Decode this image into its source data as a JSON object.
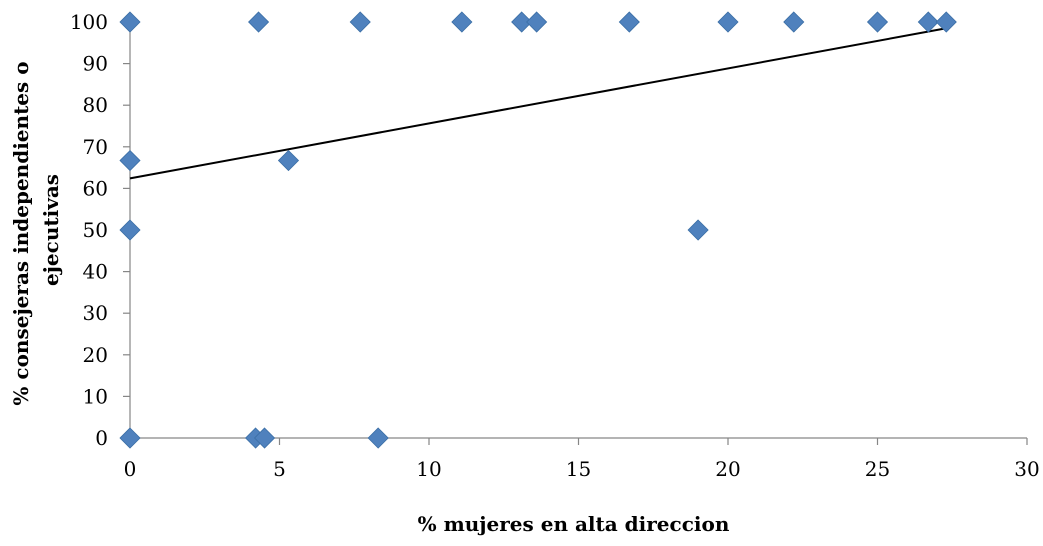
{
  "chart_data": {
    "type": "scatter",
    "title": "",
    "xlabel": "% mujeres en alta direccion",
    "ylabel_lines": [
      "% consejeras independientes o",
      "ejecutivas"
    ],
    "xlim": [
      0,
      30
    ],
    "ylim": [
      0,
      100
    ],
    "x_ticks": [
      0,
      5,
      10,
      15,
      20,
      25,
      30
    ],
    "y_ticks": [
      0,
      10,
      20,
      30,
      40,
      50,
      60,
      70,
      80,
      90,
      100
    ],
    "grid": false,
    "legend": "none",
    "marker": "diamond",
    "marker_color": "#4F81BD",
    "series": [
      {
        "points": [
          [
            0,
            100
          ],
          [
            0,
            66.7
          ],
          [
            0,
            50
          ],
          [
            0,
            0
          ],
          [
            4.2,
            0
          ],
          [
            4.5,
            0
          ],
          [
            4.3,
            100
          ],
          [
            5.3,
            66.7
          ],
          [
            7.7,
            100
          ],
          [
            8.3,
            0
          ],
          [
            11.1,
            100
          ],
          [
            13.1,
            100
          ],
          [
            13.6,
            100
          ],
          [
            16.7,
            100
          ],
          [
            19.0,
            50
          ],
          [
            20.0,
            100
          ],
          [
            22.2,
            100
          ],
          [
            25.0,
            100
          ],
          [
            26.7,
            100
          ],
          [
            27.3,
            100
          ]
        ]
      }
    ],
    "trendline": {
      "type": "linear",
      "x": [
        0,
        27.3
      ],
      "y": [
        62.4,
        98.5
      ],
      "color": "#000000"
    }
  }
}
